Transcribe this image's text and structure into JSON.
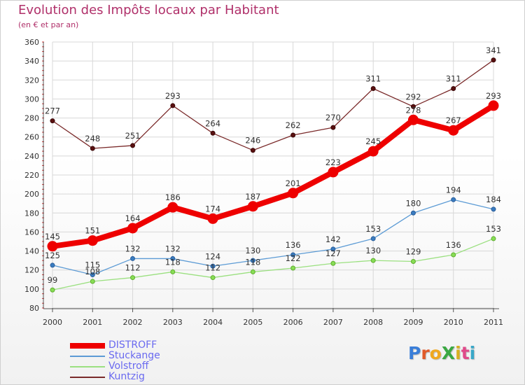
{
  "title": "Evolution des Impôts locaux par Habitant",
  "subtitle": "(en € et par an)",
  "logo": "ProXiti",
  "chart_data": {
    "type": "line",
    "title": "Evolution des Impôts locaux par Habitant",
    "ylabel": "(en € et par an)",
    "ylim": [
      80,
      360
    ],
    "yticks": [
      80,
      100,
      120,
      140,
      160,
      180,
      200,
      220,
      240,
      260,
      280,
      300,
      320,
      340,
      360
    ],
    "categories": [
      "2000",
      "2001",
      "2002",
      "2003",
      "2004",
      "2005",
      "2006",
      "2007",
      "2008",
      "2009",
      "2010",
      "2011"
    ],
    "grid": true,
    "legend": "bottom-left",
    "series": [
      {
        "name": "DISTROFF",
        "color": "#ee0000",
        "values": [
          145,
          151,
          164,
          186,
          174,
          187,
          201,
          223,
          245,
          278,
          267,
          293
        ]
      },
      {
        "name": "Stuckange",
        "color": "#5c9bd5",
        "values": [
          125,
          115,
          132,
          132,
          124,
          130,
          136,
          142,
          153,
          180,
          194,
          184
        ]
      },
      {
        "name": "Volstroff",
        "color": "#9be080",
        "values": [
          99,
          108,
          112,
          118,
          112,
          118,
          122,
          127,
          130,
          129,
          136,
          153
        ]
      },
      {
        "name": "Kuntzig",
        "color": "#7a2a2a",
        "values": [
          277,
          248,
          251,
          293,
          264,
          246,
          262,
          270,
          311,
          292,
          311,
          341
        ]
      }
    ]
  }
}
